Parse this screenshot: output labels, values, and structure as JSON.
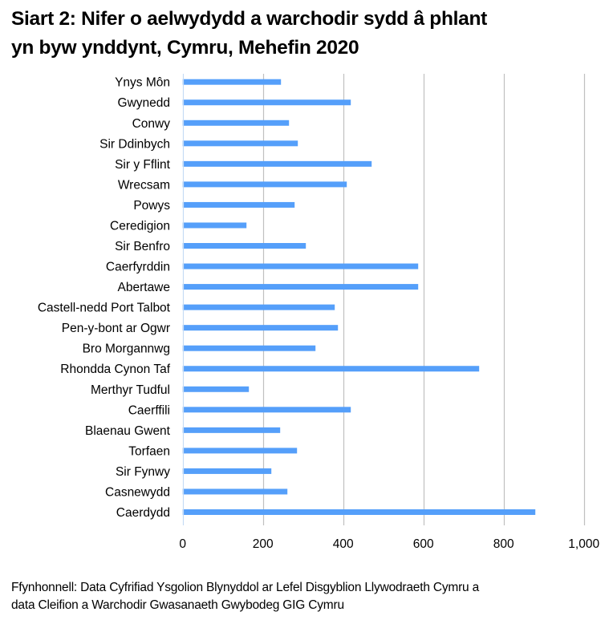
{
  "title": {
    "line1": "Siart 2: Nifer o aelwydydd a warchodir sydd â phlant",
    "line2": "yn byw ynddynt, Cymru, Mehefin 2020"
  },
  "footnote": {
    "line1": "Ffynhonnell: Data Cyfrifiad Ysgolion Blynyddol ar Lefel Disgyblion Llywodraeth Cymru a",
    "line2": "data Cleifion a Warchodir Gwasanaeth Gwybodeg GIG Cymru"
  },
  "colors": {
    "bar": "#559ffa",
    "gridline": "#c0c0c0",
    "zero_axis": "#c6dbf5",
    "text": "#000000"
  },
  "chart_data": {
    "type": "bar",
    "orientation": "horizontal",
    "title": "Siart 2: Nifer o aelwydydd a warchodir sydd â phlant yn byw ynddynt, Cymru, Mehefin 2020",
    "xlabel": "",
    "ylabel": "",
    "xlim": [
      0,
      1000
    ],
    "x_ticks": [
      0,
      200,
      400,
      600,
      800,
      1000
    ],
    "x_tick_labels": [
      "0",
      "200",
      "400",
      "600",
      "800",
      "1,000"
    ],
    "grid": "vertical",
    "legend": "none",
    "categories": [
      "Ynys Môn",
      "Gwynedd",
      "Conwy",
      "Sir Ddinbych",
      "Sir y Fflint",
      "Wrecsam",
      "Powys",
      "Ceredigion",
      "Sir Benfro",
      "Caerfyrddin",
      "Abertawe",
      "Castell-nedd Port Talbot",
      "Pen-y-bont ar Ogwr",
      "Bro Morgannwg",
      "Rhondda Cynon Taf",
      "Merthyr Tudful",
      "Caerffili",
      "Blaenau Gwent",
      "Torfaen",
      "Sir Fynwy",
      "Casnewydd",
      "Caerdydd"
    ],
    "values": [
      245,
      419,
      265,
      287,
      471,
      409,
      279,
      159,
      307,
      587,
      587,
      379,
      387,
      331,
      739,
      165,
      419,
      243,
      285,
      221,
      261,
      879
    ],
    "source": "Ffynhonnell: Data Cyfrifiad Ysgolion Blynyddol ar Lefel Disgyblion Llywodraeth Cymru a data Cleifion a Warchodir Gwasanaeth Gwybodeg GIG Cymru"
  }
}
